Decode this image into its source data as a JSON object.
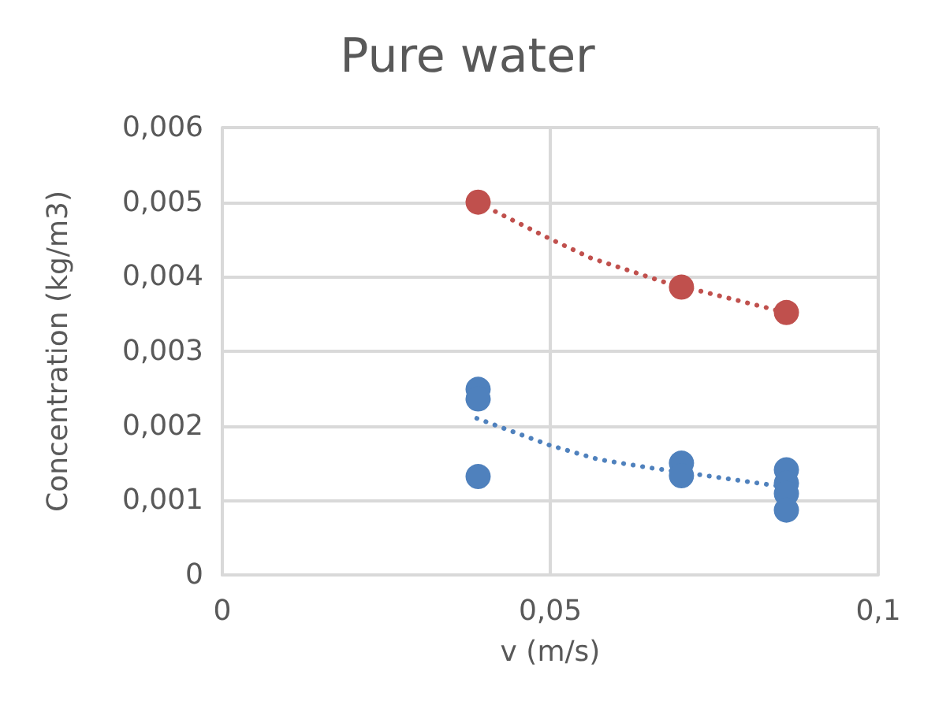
{
  "chart_data": {
    "type": "scatter",
    "title": "Pure water",
    "xlabel": "v (m/s)",
    "ylabel": "Concentration (kg/m3)",
    "xlim": [
      0,
      0.1
    ],
    "xticks": [
      {
        "value": 0,
        "label": "0"
      },
      {
        "value": 0.05,
        "label": "0,05"
      },
      {
        "value": 0.1,
        "label": "0,1"
      }
    ],
    "ylim": [
      0,
      0.006
    ],
    "yticks": [
      {
        "value": 0,
        "label": "0"
      },
      {
        "value": 0.001,
        "label": "0,001"
      },
      {
        "value": 0.002,
        "label": "0,002"
      },
      {
        "value": 0.003,
        "label": "0,003"
      },
      {
        "value": 0.004,
        "label": "0,004"
      },
      {
        "value": 0.005,
        "label": "0,005"
      },
      {
        "value": 0.006,
        "label": "0,006"
      }
    ],
    "grid": true,
    "series": [
      {
        "marker": "circle",
        "color": "#c0504d",
        "x": [
          0.039,
          0.07,
          0.086
        ],
        "values": [
          0.005,
          0.00386,
          0.00352
        ]
      },
      {
        "marker": "circle",
        "color": "#4f81bd",
        "x": [
          0.039,
          0.039,
          0.039,
          0.07,
          0.07,
          0.086,
          0.086,
          0.086,
          0.086
        ],
        "values": [
          0.00249,
          0.00236,
          0.00132,
          0.0015,
          0.00133,
          0.00141,
          0.00123,
          0.00109,
          0.00087
        ]
      },
      {
        "type": "line",
        "marker": "none",
        "line_style": "dotted",
        "color": "#c0504d",
        "x": [
          0.039,
          0.0499,
          0.0562,
          0.0673,
          0.0823,
          0.0858
        ],
        "values": [
          0.00499,
          0.00451,
          0.00425,
          0.00393,
          0.0036,
          0.00352
        ]
      },
      {
        "type": "line",
        "marker": "none",
        "line_style": "dotted",
        "color": "#4f81bd",
        "x": [
          0.0388,
          0.0499,
          0.0573,
          0.0649,
          0.0699,
          0.0858
        ],
        "values": [
          0.0021,
          0.00174,
          0.00155,
          0.00144,
          0.00138,
          0.00118
        ]
      }
    ]
  }
}
